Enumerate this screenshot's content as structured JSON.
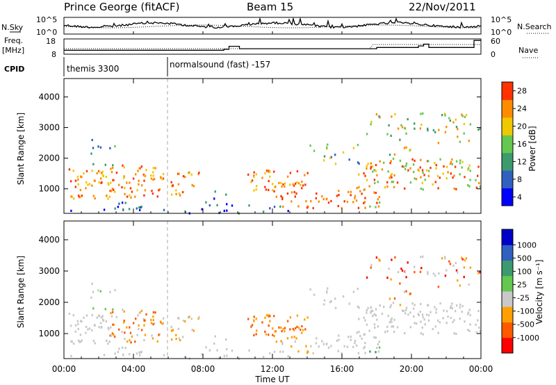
{
  "header": {
    "station": "Prince George (fitACF)",
    "beam": "Beam 15",
    "date": "22/Nov/2011"
  },
  "panel_labels": {
    "nsky": "N.Sky",
    "freq": "Freq.",
    "freq_unit": "[MHz]",
    "cpid": "CPID",
    "nsearch": "N.Search",
    "nave": "Nave"
  },
  "cpid_entries": [
    {
      "text": "themis 3300"
    },
    {
      "text": "normalsound (fast) -157"
    }
  ],
  "colors": {
    "power": [
      "#0000ff",
      "#3060c0",
      "#3c9a6e",
      "#64c850",
      "#f0c800",
      "#ff8c00",
      "#ff3200"
    ],
    "velocity": [
      "#ff0000",
      "#ff5a00",
      "#ffa000",
      "#c8c8c8",
      "#64c850",
      "#3c9a6e",
      "#3060c0",
      "#0000c8"
    ],
    "gray": "#c8c8c8"
  },
  "chart_data": [
    {
      "type": "line",
      "name": "noise-panel",
      "x_range_hours": [
        0,
        24
      ],
      "left_axis_ticks": [
        "10^5",
        "10^0"
      ],
      "right_axis_ticks": [
        "10^5",
        "10^0"
      ]
    },
    {
      "type": "line",
      "name": "freq-nave-panel",
      "left_axis_ticks": [
        "18",
        "8"
      ],
      "right_axis_ticks": [
        "60",
        "0"
      ],
      "freq_steps": [
        {
          "hours": [
            0,
            9.2
          ],
          "mhz": 10.6
        },
        {
          "hours": [
            9.2,
            9.5
          ],
          "mhz": 11.2
        },
        {
          "hours": [
            9.5,
            10.1
          ],
          "mhz": 13.2
        },
        {
          "hours": [
            10.1,
            18.0
          ],
          "mhz": 11.6
        },
        {
          "hours": [
            18.0,
            20.4
          ],
          "mhz": 12.4
        },
        {
          "hours": [
            20.4,
            20.7
          ],
          "mhz": 13.4
        },
        {
          "hours": [
            20.7,
            21.0
          ],
          "mhz": 14.6
        },
        {
          "hours": [
            21.0,
            23.6
          ],
          "mhz": 12.4
        },
        {
          "hours": [
            23.6,
            24.0
          ],
          "mhz": 17.0
        }
      ]
    },
    {
      "type": "heatmap",
      "name": "power-panel",
      "ylabel": "Slant Range [km]",
      "yticks": [
        "1000",
        "2000",
        "3000",
        "4000"
      ],
      "ylim": [
        200,
        4600
      ],
      "colorbar_label": "Power [dB]",
      "colorbar_ticks": [
        "4",
        "8",
        "12",
        "16",
        "20",
        "24",
        "28"
      ]
    },
    {
      "type": "heatmap",
      "name": "velocity-panel",
      "ylabel": "Slant Range [km]",
      "yticks": [
        "1000",
        "2000",
        "3000",
        "4000"
      ],
      "ylim": [
        200,
        4600
      ],
      "colorbar_label": "Velocity [m s⁻¹]",
      "colorbar_ticks": [
        "1000",
        "500",
        "100",
        "25",
        "-25",
        "-100",
        "-500",
        "-1000"
      ]
    }
  ],
  "xaxis": {
    "label": "Time UT",
    "ticks": [
      "00:00",
      "04:00",
      "08:00",
      "12:00",
      "16:00",
      "20:00",
      "00:00"
    ]
  }
}
